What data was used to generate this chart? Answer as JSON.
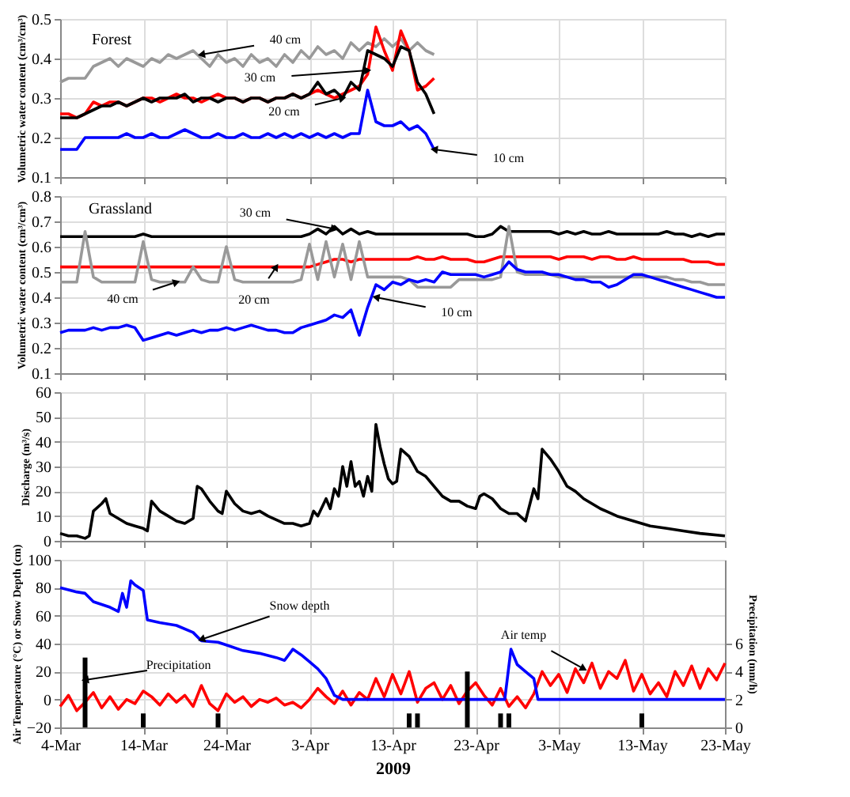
{
  "chart_data": [
    {
      "type": "line",
      "title": "Forest",
      "ylabel": "Volumetric water content (cm³/cm³)",
      "x": [
        "2009-03-04",
        "2009-03-05",
        "2009-03-06",
        "2009-03-07",
        "2009-03-08",
        "2009-03-09",
        "2009-03-10",
        "2009-03-11",
        "2009-03-12",
        "2009-03-13",
        "2009-03-14",
        "2009-03-15",
        "2009-03-16",
        "2009-03-17",
        "2009-03-18",
        "2009-03-19",
        "2009-03-20",
        "2009-03-21",
        "2009-03-22",
        "2009-03-23",
        "2009-03-24",
        "2009-03-25",
        "2009-03-26",
        "2009-03-27",
        "2009-03-28",
        "2009-03-29",
        "2009-03-30",
        "2009-03-31",
        "2009-04-01",
        "2009-04-02",
        "2009-04-03",
        "2009-04-04",
        "2009-04-05",
        "2009-04-06",
        "2009-04-07",
        "2009-04-08",
        "2009-04-09",
        "2009-04-10",
        "2009-04-11",
        "2009-04-12",
        "2009-04-13",
        "2009-04-14",
        "2009-04-15",
        "2009-04-16",
        "2009-04-17",
        "2009-04-18"
      ],
      "series": [
        {
          "color": "#999999",
          "values": [
            0.34,
            0.35,
            0.35,
            0.35,
            0.38,
            0.39,
            0.4,
            0.38,
            0.4,
            0.39,
            0.38,
            0.4,
            0.39,
            0.41,
            0.4,
            0.41,
            0.42,
            0.4,
            0.38,
            0.41,
            0.39,
            0.4,
            0.38,
            0.41,
            0.39,
            0.4,
            0.38,
            0.41,
            0.39,
            0.42,
            0.4,
            0.43,
            0.41,
            0.42,
            0.4,
            0.44,
            0.42,
            0.44,
            0.43,
            0.45,
            0.43,
            0.45,
            0.42,
            0.44,
            0.42,
            0.41
          ]
        },
        {
          "color": "#ff0000",
          "values": [
            0.26,
            0.26,
            0.25,
            0.26,
            0.29,
            0.28,
            0.29,
            0.29,
            0.28,
            0.29,
            0.3,
            0.3,
            0.29,
            0.3,
            0.31,
            0.3,
            0.3,
            0.29,
            0.3,
            0.31,
            0.3,
            0.3,
            0.29,
            0.3,
            0.3,
            0.29,
            0.3,
            0.3,
            0.31,
            0.3,
            0.31,
            0.32,
            0.31,
            0.3,
            0.31,
            0.32,
            0.33,
            0.36,
            0.48,
            0.42,
            0.37,
            0.47,
            0.42,
            0.32,
            0.33,
            0.35
          ]
        },
        {
          "color": "#000000",
          "values": [
            0.25,
            0.25,
            0.25,
            0.26,
            0.27,
            0.28,
            0.28,
            0.29,
            0.28,
            0.29,
            0.3,
            0.29,
            0.3,
            0.3,
            0.3,
            0.31,
            0.29,
            0.3,
            0.3,
            0.29,
            0.3,
            0.3,
            0.29,
            0.3,
            0.3,
            0.29,
            0.3,
            0.3,
            0.31,
            0.3,
            0.31,
            0.34,
            0.31,
            0.32,
            0.3,
            0.34,
            0.32,
            0.42,
            0.41,
            0.4,
            0.38,
            0.43,
            0.42,
            0.34,
            0.31,
            0.26
          ]
        },
        {
          "color": "#0000ff",
          "values": [
            0.17,
            0.17,
            0.17,
            0.2,
            0.2,
            0.2,
            0.2,
            0.2,
            0.21,
            0.2,
            0.2,
            0.21,
            0.2,
            0.2,
            0.21,
            0.22,
            0.21,
            0.2,
            0.2,
            0.21,
            0.2,
            0.2,
            0.21,
            0.2,
            0.2,
            0.21,
            0.2,
            0.21,
            0.2,
            0.21,
            0.2,
            0.21,
            0.2,
            0.21,
            0.2,
            0.21,
            0.21,
            0.32,
            0.24,
            0.23,
            0.23,
            0.24,
            0.22,
            0.23,
            0.21,
            0.17
          ]
        }
      ],
      "annotations": [
        {
          "text": "40 cm",
          "x": "2009-03-21",
          "y": 0.41
        },
        {
          "text": "30 cm",
          "x": "2009-04-10",
          "y": 0.37
        },
        {
          "text": "20 cm",
          "x": "2009-04-07",
          "y": 0.3
        },
        {
          "text": "10 cm",
          "x": "2009-04-18",
          "y": 0.17
        }
      ],
      "xlim": [
        "2009-03-04",
        "2009-05-23"
      ],
      "xticks": [
        {
          "value": "2009-03-04",
          "label": null
        },
        {
          "value": "2009-03-14",
          "label": null
        },
        {
          "value": "2009-03-24",
          "label": null
        },
        {
          "value": "2009-04-03",
          "label": null
        },
        {
          "value": "2009-04-13",
          "label": null
        },
        {
          "value": "2009-04-23",
          "label": null
        },
        {
          "value": "2009-05-03",
          "label": null
        },
        {
          "value": "2009-05-13",
          "label": null
        },
        {
          "value": "2009-05-23",
          "label": null
        }
      ],
      "ylim": [
        0.1,
        0.5
      ],
      "yticks": [
        0.1,
        0.2,
        0.3,
        0.4,
        0.5
      ],
      "grid": true,
      "tick_labels": "y"
    },
    {
      "type": "line",
      "title": "Grassland",
      "ylabel": "Volumetric water content (cm³/cm³)",
      "x": [
        "2009-03-04",
        "2009-03-05",
        "2009-03-06",
        "2009-03-07",
        "2009-03-08",
        "2009-03-09",
        "2009-03-10",
        "2009-03-11",
        "2009-03-12",
        "2009-03-13",
        "2009-03-14",
        "2009-03-15",
        "2009-03-16",
        "2009-03-17",
        "2009-03-18",
        "2009-03-19",
        "2009-03-20",
        "2009-03-21",
        "2009-03-22",
        "2009-03-23",
        "2009-03-24",
        "2009-03-25",
        "2009-03-26",
        "2009-03-27",
        "2009-03-28",
        "2009-03-29",
        "2009-03-30",
        "2009-03-31",
        "2009-04-01",
        "2009-04-02",
        "2009-04-03",
        "2009-04-04",
        "2009-04-05",
        "2009-04-06",
        "2009-04-07",
        "2009-04-08",
        "2009-04-09",
        "2009-04-10",
        "2009-04-11",
        "2009-04-12",
        "2009-04-13",
        "2009-04-14",
        "2009-04-15",
        "2009-04-16",
        "2009-04-17",
        "2009-04-18",
        "2009-04-19",
        "2009-04-20",
        "2009-04-21",
        "2009-04-22",
        "2009-04-23",
        "2009-04-24",
        "2009-04-25",
        "2009-04-26",
        "2009-04-27",
        "2009-04-28",
        "2009-04-29",
        "2009-04-30",
        "2009-05-01",
        "2009-05-02",
        "2009-05-03",
        "2009-05-04",
        "2009-05-05",
        "2009-05-06",
        "2009-05-07",
        "2009-05-08",
        "2009-05-09",
        "2009-05-10",
        "2009-05-11",
        "2009-05-12",
        "2009-05-13",
        "2009-05-14",
        "2009-05-15",
        "2009-05-16",
        "2009-05-17",
        "2009-05-18",
        "2009-05-19",
        "2009-05-20",
        "2009-05-21",
        "2009-05-22",
        "2009-05-23"
      ],
      "series": [
        {
          "color": "#000000",
          "values": [
            0.64,
            0.64,
            0.64,
            0.64,
            0.64,
            0.64,
            0.64,
            0.64,
            0.64,
            0.64,
            0.65,
            0.64,
            0.64,
            0.64,
            0.64,
            0.64,
            0.64,
            0.64,
            0.64,
            0.64,
            0.64,
            0.64,
            0.64,
            0.64,
            0.64,
            0.64,
            0.64,
            0.64,
            0.64,
            0.64,
            0.65,
            0.67,
            0.65,
            0.68,
            0.65,
            0.67,
            0.65,
            0.66,
            0.65,
            0.65,
            0.65,
            0.65,
            0.65,
            0.65,
            0.65,
            0.65,
            0.65,
            0.65,
            0.65,
            0.65,
            0.64,
            0.64,
            0.65,
            0.68,
            0.66,
            0.66,
            0.66,
            0.66,
            0.66,
            0.66,
            0.65,
            0.66,
            0.65,
            0.66,
            0.65,
            0.65,
            0.66,
            0.65,
            0.65,
            0.65,
            0.65,
            0.65,
            0.65,
            0.66,
            0.65,
            0.65,
            0.64,
            0.65,
            0.64,
            0.65,
            0.65
          ]
        },
        {
          "color": "#ff0000",
          "values": [
            0.52,
            0.52,
            0.52,
            0.52,
            0.52,
            0.52,
            0.52,
            0.52,
            0.52,
            0.52,
            0.52,
            0.52,
            0.52,
            0.52,
            0.52,
            0.52,
            0.52,
            0.52,
            0.52,
            0.52,
            0.52,
            0.52,
            0.52,
            0.52,
            0.52,
            0.52,
            0.52,
            0.52,
            0.52,
            0.52,
            0.52,
            0.53,
            0.54,
            0.55,
            0.55,
            0.54,
            0.55,
            0.55,
            0.55,
            0.55,
            0.55,
            0.55,
            0.55,
            0.56,
            0.55,
            0.55,
            0.56,
            0.55,
            0.55,
            0.55,
            0.54,
            0.54,
            0.55,
            0.56,
            0.56,
            0.56,
            0.56,
            0.56,
            0.56,
            0.56,
            0.55,
            0.56,
            0.56,
            0.56,
            0.55,
            0.56,
            0.56,
            0.55,
            0.55,
            0.56,
            0.55,
            0.55,
            0.55,
            0.55,
            0.55,
            0.55,
            0.54,
            0.54,
            0.54,
            0.53,
            0.53
          ]
        },
        {
          "color": "#999999",
          "values": [
            0.46,
            0.46,
            0.46,
            0.66,
            0.48,
            0.46,
            0.46,
            0.46,
            0.46,
            0.46,
            0.62,
            0.47,
            0.46,
            0.46,
            0.46,
            0.46,
            0.52,
            0.47,
            0.46,
            0.46,
            0.6,
            0.47,
            0.46,
            0.46,
            0.46,
            0.46,
            0.46,
            0.46,
            0.46,
            0.47,
            0.61,
            0.47,
            0.62,
            0.48,
            0.61,
            0.47,
            0.62,
            0.48,
            0.48,
            0.48,
            0.48,
            0.48,
            0.47,
            0.44,
            0.44,
            0.44,
            0.44,
            0.44,
            0.47,
            0.47,
            0.47,
            0.47,
            0.47,
            0.48,
            0.68,
            0.5,
            0.49,
            0.49,
            0.49,
            0.49,
            0.48,
            0.48,
            0.48,
            0.48,
            0.48,
            0.48,
            0.48,
            0.48,
            0.48,
            0.48,
            0.48,
            0.48,
            0.48,
            0.48,
            0.47,
            0.47,
            0.46,
            0.46,
            0.45,
            0.45,
            0.45
          ]
        },
        {
          "color": "#0000ff",
          "values": [
            0.26,
            0.27,
            0.27,
            0.27,
            0.28,
            0.27,
            0.28,
            0.28,
            0.29,
            0.28,
            0.23,
            0.24,
            0.25,
            0.26,
            0.25,
            0.26,
            0.27,
            0.26,
            0.27,
            0.27,
            0.28,
            0.27,
            0.28,
            0.29,
            0.28,
            0.27,
            0.27,
            0.26,
            0.26,
            0.28,
            0.29,
            0.3,
            0.31,
            0.33,
            0.32,
            0.35,
            0.25,
            0.36,
            0.45,
            0.43,
            0.46,
            0.45,
            0.47,
            0.46,
            0.47,
            0.46,
            0.5,
            0.49,
            0.49,
            0.49,
            0.49,
            0.48,
            0.49,
            0.5,
            0.54,
            0.51,
            0.5,
            0.5,
            0.5,
            0.49,
            0.49,
            0.48,
            0.47,
            0.47,
            0.46,
            0.46,
            0.44,
            0.45,
            0.47,
            0.49,
            0.49,
            0.48,
            0.47,
            0.46,
            0.45,
            0.44,
            0.43,
            0.42,
            0.41,
            0.4,
            0.4
          ]
        }
      ],
      "annotations": [
        {
          "text": "30 cm",
          "x": "2009-04-06",
          "y": 0.67
        },
        {
          "text": "40 cm",
          "x": "2009-03-18",
          "y": 0.46
        },
        {
          "text": "20 cm",
          "x": "2009-03-30",
          "y": 0.52
        },
        {
          "text": "10 cm",
          "x": "2009-04-11",
          "y": 0.4
        }
      ],
      "xlim": [
        "2009-03-04",
        "2009-05-23"
      ],
      "xticks": [
        {
          "value": "2009-03-04",
          "label": null
        },
        {
          "value": "2009-03-14",
          "label": null
        },
        {
          "value": "2009-03-24",
          "label": null
        },
        {
          "value": "2009-04-03",
          "label": null
        },
        {
          "value": "2009-04-13",
          "label": null
        },
        {
          "value": "2009-04-23",
          "label": null
        },
        {
          "value": "2009-05-03",
          "label": null
        },
        {
          "value": "2009-05-13",
          "label": null
        },
        {
          "value": "2009-05-23",
          "label": null
        }
      ],
      "ylim": [
        0.1,
        0.8
      ],
      "yticks": [
        0.1,
        0.2,
        0.3,
        0.4,
        0.5,
        0.6,
        0.7,
        0.8
      ],
      "grid": true,
      "tick_labels": "y"
    },
    {
      "type": "line",
      "ylabel": "Discharge (m³/s)",
      "x": [
        "2009-03-04",
        "2009-03-05",
        "2009-03-06",
        "2009-03-07",
        "2009-03-07T12:00",
        "2009-03-08",
        "2009-03-09",
        "2009-03-09T12:00",
        "2009-03-10",
        "2009-03-11",
        "2009-03-12",
        "2009-03-13",
        "2009-03-14",
        "2009-03-14T12:00",
        "2009-03-15",
        "2009-03-16",
        "2009-03-17",
        "2009-03-18",
        "2009-03-19",
        "2009-03-20",
        "2009-03-20T12:00",
        "2009-03-21",
        "2009-03-22",
        "2009-03-23",
        "2009-03-23T12:00",
        "2009-03-24",
        "2009-03-25",
        "2009-03-26",
        "2009-03-27",
        "2009-03-28",
        "2009-03-29",
        "2009-03-31",
        "2009-04-01",
        "2009-04-02",
        "2009-04-03",
        "2009-04-03T12:00",
        "2009-04-04",
        "2009-04-05",
        "2009-04-05T12:00",
        "2009-04-06",
        "2009-04-06T12:00",
        "2009-04-07",
        "2009-04-07T12:00",
        "2009-04-08",
        "2009-04-08T12:00",
        "2009-04-09",
        "2009-04-09T12:00",
        "2009-04-10",
        "2009-04-10T12:00",
        "2009-04-11",
        "2009-04-11T12:00",
        "2009-04-12",
        "2009-04-12T12:00",
        "2009-04-13",
        "2009-04-13T12:00",
        "2009-04-14",
        "2009-04-15",
        "2009-04-16",
        "2009-04-17",
        "2009-04-18",
        "2009-04-19",
        "2009-04-20",
        "2009-04-21",
        "2009-04-22",
        "2009-04-23",
        "2009-04-23T12:00",
        "2009-04-24",
        "2009-04-25",
        "2009-04-26",
        "2009-04-27",
        "2009-04-28",
        "2009-04-29",
        "2009-04-30",
        "2009-04-30T12:00",
        "2009-05-01",
        "2009-05-02",
        "2009-05-03",
        "2009-05-04",
        "2009-05-05",
        "2009-05-06",
        "2009-05-07",
        "2009-05-08",
        "2009-05-10",
        "2009-05-12",
        "2009-05-14",
        "2009-05-16",
        "2009-05-18",
        "2009-05-20",
        "2009-05-23"
      ],
      "series": [
        {
          "color": "#000000",
          "values": [
            3,
            2,
            2,
            1,
            2,
            12,
            15,
            17,
            11,
            9,
            7,
            6,
            5,
            4,
            16,
            12,
            10,
            8,
            7,
            9,
            22,
            21,
            16,
            12,
            11,
            20,
            15,
            12,
            11,
            12,
            10,
            7,
            7,
            6,
            7,
            12,
            10,
            17,
            13,
            21,
            18,
            30,
            22,
            32,
            22,
            24,
            18,
            26,
            20,
            47,
            38,
            31,
            25,
            23,
            24,
            37,
            34,
            28,
            26,
            22,
            18,
            16,
            16,
            14,
            13,
            18,
            19,
            17,
            13,
            11,
            11,
            8,
            21,
            17,
            37,
            33,
            28,
            22,
            20,
            17,
            15,
            13,
            10,
            8,
            6,
            5,
            4,
            3,
            2
          ]
        }
      ],
      "xlim": [
        "2009-03-04",
        "2009-05-23"
      ],
      "xticks": [
        {
          "value": "2009-03-04",
          "label": null
        },
        {
          "value": "2009-03-14",
          "label": null
        },
        {
          "value": "2009-03-24",
          "label": null
        },
        {
          "value": "2009-04-03",
          "label": null
        },
        {
          "value": "2009-04-13",
          "label": null
        },
        {
          "value": "2009-04-23",
          "label": null
        },
        {
          "value": "2009-05-03",
          "label": null
        },
        {
          "value": "2009-05-13",
          "label": null
        },
        {
          "value": "2009-05-23",
          "label": null
        }
      ],
      "ylim": [
        0,
        60
      ],
      "yticks": [
        0,
        10,
        20,
        30,
        40,
        50,
        60
      ],
      "grid": true,
      "tick_labels": "y"
    },
    {
      "type": "line",
      "xlabel": "2009",
      "ylabel": "Air Temperature (°C) or Snow Depth (cm)",
      "y2label": "Precipitation (mm/h)",
      "x": [
        "2009-03-04",
        "2009-03-05",
        "2009-03-06",
        "2009-03-07",
        "2009-03-08",
        "2009-03-09",
        "2009-03-10",
        "2009-03-11",
        "2009-03-12",
        "2009-03-13",
        "2009-03-14",
        "2009-03-15",
        "2009-03-16",
        "2009-03-17",
        "2009-03-18",
        "2009-03-19",
        "2009-03-20",
        "2009-03-21",
        "2009-03-22",
        "2009-03-23",
        "2009-03-24",
        "2009-03-25",
        "2009-03-26",
        "2009-03-27",
        "2009-03-28",
        "2009-03-29",
        "2009-03-30",
        "2009-03-31",
        "2009-04-01",
        "2009-04-02",
        "2009-04-03",
        "2009-04-04",
        "2009-04-05",
        "2009-04-06",
        "2009-04-07",
        "2009-04-08",
        "2009-04-09",
        "2009-04-10",
        "2009-04-11",
        "2009-04-12",
        "2009-04-13",
        "2009-04-14",
        "2009-04-15",
        "2009-04-16",
        "2009-04-17",
        "2009-04-18",
        "2009-04-19",
        "2009-04-20",
        "2009-04-21",
        "2009-04-22",
        "2009-04-23",
        "2009-04-24",
        "2009-04-25",
        "2009-04-26",
        "2009-04-27",
        "2009-04-28",
        "2009-04-29",
        "2009-04-30",
        "2009-05-01",
        "2009-05-02",
        "2009-05-03",
        "2009-05-04",
        "2009-05-05",
        "2009-05-06",
        "2009-05-07",
        "2009-05-08",
        "2009-05-09",
        "2009-05-10",
        "2009-05-11",
        "2009-05-12",
        "2009-05-13",
        "2009-05-14",
        "2009-05-15",
        "2009-05-16",
        "2009-05-17",
        "2009-05-18",
        "2009-05-19",
        "2009-05-20",
        "2009-05-21",
        "2009-05-22",
        "2009-05-23"
      ],
      "series": [
        {
          "type": "bar",
          "axis": "y2",
          "color": "#000000",
          "x": [
            "2009-03-07",
            "2009-03-14",
            "2009-03-23",
            "2009-04-15",
            "2009-04-16",
            "2009-04-22",
            "2009-04-26",
            "2009-04-27",
            "2009-05-13"
          ],
          "values": [
            5,
            1,
            1,
            1,
            1,
            4,
            1,
            1,
            1
          ]
        },
        {
          "color": "#ff0000",
          "values": [
            -5,
            3,
            -8,
            -2,
            5,
            -6,
            2,
            -7,
            0,
            -3,
            6,
            2,
            -4,
            4,
            -2,
            3,
            -5,
            10,
            -3,
            -8,
            4,
            -2,
            2,
            -5,
            0,
            -2,
            1,
            -4,
            -2,
            -6,
            0,
            8,
            2,
            -3,
            6,
            -4,
            5,
            0,
            15,
            2,
            18,
            4,
            20,
            -2,
            8,
            12,
            0,
            10,
            -3,
            6,
            12,
            3,
            -4,
            8,
            -5,
            2,
            -6,
            4,
            20,
            10,
            18,
            5,
            22,
            12,
            26,
            8,
            20,
            15,
            28,
            6,
            18,
            4,
            12,
            2,
            20,
            10,
            24,
            8,
            22,
            14,
            26
          ]
        },
        {
          "color": "#0000ff",
          "x": [
            "2009-03-04",
            "2009-03-06",
            "2009-03-07",
            "2009-03-08",
            "2009-03-09",
            "2009-03-10",
            "2009-03-11",
            "2009-03-11T12:00",
            "2009-03-12",
            "2009-03-12T12:00",
            "2009-03-13",
            "2009-03-14",
            "2009-03-14T12:00",
            "2009-03-16",
            "2009-03-18",
            "2009-03-20",
            "2009-03-21",
            "2009-03-23",
            "2009-03-24",
            "2009-03-26",
            "2009-03-28",
            "2009-03-30",
            "2009-03-31",
            "2009-04-01",
            "2009-04-02",
            "2009-04-03",
            "2009-04-04",
            "2009-04-05",
            "2009-04-06",
            "2009-04-07",
            "2009-04-26T12:00",
            "2009-04-27T06:00",
            "2009-04-28",
            "2009-04-29",
            "2009-04-30",
            "2009-04-30T12:00",
            "2009-05-23"
          ],
          "values": [
            80,
            77,
            76,
            70,
            68,
            66,
            63,
            76,
            66,
            85,
            82,
            78,
            57,
            55,
            53,
            48,
            42,
            41,
            39,
            35,
            33,
            30,
            28,
            36,
            32,
            27,
            22,
            15,
            3,
            0,
            0,
            36,
            25,
            20,
            15,
            0,
            0
          ]
        }
      ],
      "annotations": [
        {
          "text": "Snow depth",
          "x": "2009-03-21",
          "y": 43
        },
        {
          "text": "Precipitation",
          "x": "2009-03-07",
          "y": 14
        },
        {
          "text": "Air temp",
          "x": "2009-05-06",
          "y": 22
        }
      ],
      "xlim": [
        "2009-03-04",
        "2009-05-23"
      ],
      "xticks": [
        {
          "value": "2009-03-04",
          "label": "4-Mar"
        },
        {
          "value": "2009-03-14",
          "label": "14-Mar"
        },
        {
          "value": "2009-03-24",
          "label": "24-Mar"
        },
        {
          "value": "2009-04-03",
          "label": "3-Apr"
        },
        {
          "value": "2009-04-13",
          "label": "13-Apr"
        },
        {
          "value": "2009-04-23",
          "label": "23-Apr"
        },
        {
          "value": "2009-05-03",
          "label": "3-May"
        },
        {
          "value": "2009-05-13",
          "label": "13-May"
        },
        {
          "value": "2009-05-23",
          "label": "23-May"
        }
      ],
      "ylim": [
        -20,
        100
      ],
      "yticks": [
        -20,
        0,
        20,
        40,
        60,
        80,
        100
      ],
      "y2lim": [
        0,
        12
      ],
      "y2ticks": [
        0,
        2,
        4,
        6
      ],
      "grid": true
    }
  ]
}
